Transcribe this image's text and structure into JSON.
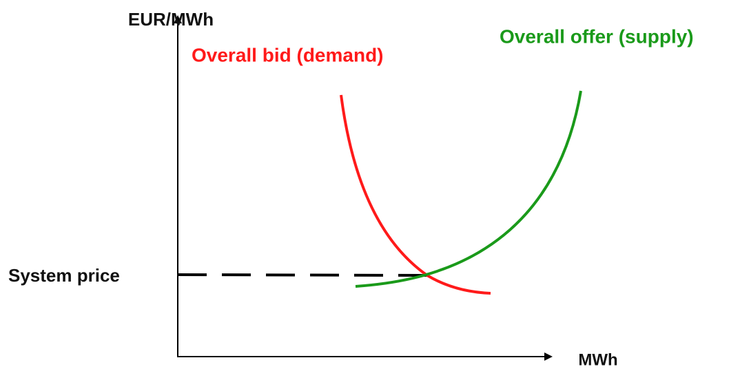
{
  "axes": {
    "y_label": "EUR/MWh",
    "x_label": "MWh"
  },
  "curves": [
    {
      "label": "Overall bid (demand)",
      "color": "#ff1a1a"
    },
    {
      "label": "Overall offer (supply)",
      "color": "#1a9a1a"
    }
  ],
  "annotations": {
    "system_price": "System price"
  }
}
